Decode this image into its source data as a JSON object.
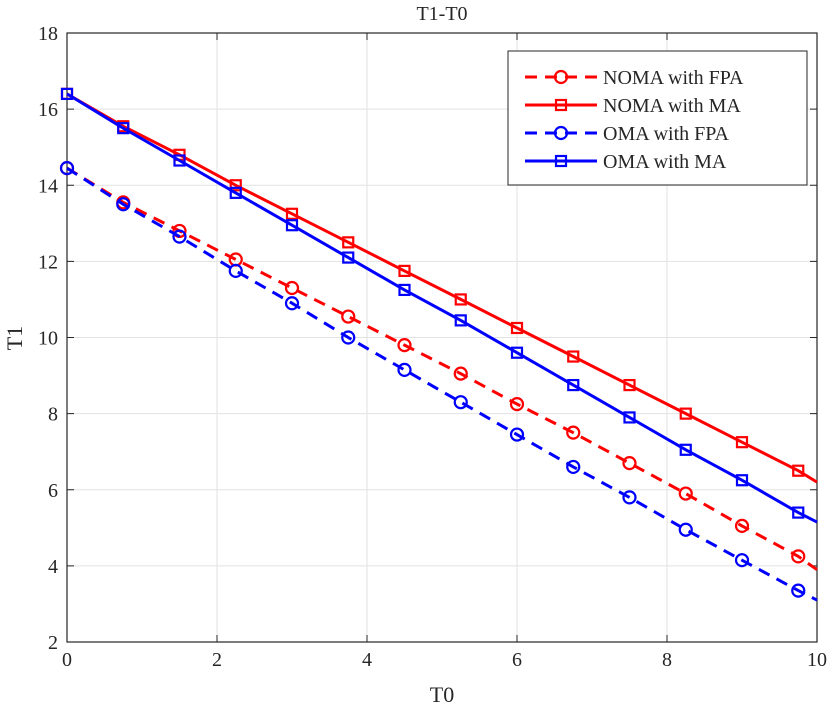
{
  "chart_data": {
    "type": "line",
    "title": "T1-T0",
    "xlabel": "T0",
    "ylabel": "T1",
    "xlim": [
      0,
      10
    ],
    "ylim": [
      2,
      18
    ],
    "xticks": [
      0,
      2,
      4,
      6,
      8,
      10
    ],
    "yticks": [
      2,
      4,
      6,
      8,
      10,
      12,
      14,
      16,
      18
    ],
    "grid": true,
    "legend_position": "top-right",
    "x": [
      0,
      0.75,
      1.5,
      2.25,
      3,
      3.75,
      4.5,
      5.25,
      6,
      6.75,
      7.5,
      8.25,
      9,
      9.75
    ],
    "series": [
      {
        "name": "NOMA with FPA",
        "color": "#ff0000",
        "line_style": "dashed",
        "marker": "circle",
        "values": [
          14.45,
          13.55,
          12.8,
          12.05,
          11.3,
          10.55,
          9.8,
          9.05,
          8.25,
          7.5,
          6.7,
          5.9,
          5.05,
          4.25
        ],
        "line_end": [
          10,
          3.9
        ]
      },
      {
        "name": "NOMA with MA",
        "color": "#ff0000",
        "line_style": "solid",
        "marker": "square",
        "values": [
          16.4,
          15.55,
          14.8,
          14.0,
          13.25,
          12.5,
          11.75,
          11.0,
          10.25,
          9.5,
          8.75,
          8.0,
          7.25,
          6.5
        ],
        "line_end": [
          10,
          6.2
        ]
      },
      {
        "name": "OMA with FPA",
        "color": "#0000ff",
        "line_style": "dashed",
        "marker": "circle",
        "values": [
          14.45,
          13.5,
          12.65,
          11.75,
          10.9,
          10.0,
          9.15,
          8.3,
          7.45,
          6.6,
          5.8,
          4.95,
          4.15,
          3.35
        ],
        "line_end": [
          10,
          3.1
        ]
      },
      {
        "name": "OMA with MA",
        "color": "#0000ff",
        "line_style": "solid",
        "marker": "square",
        "values": [
          16.4,
          15.5,
          14.65,
          13.8,
          12.95,
          12.1,
          11.25,
          10.45,
          9.6,
          8.75,
          7.9,
          7.05,
          6.25,
          5.4
        ],
        "line_end": [
          10,
          5.15
        ]
      }
    ]
  }
}
